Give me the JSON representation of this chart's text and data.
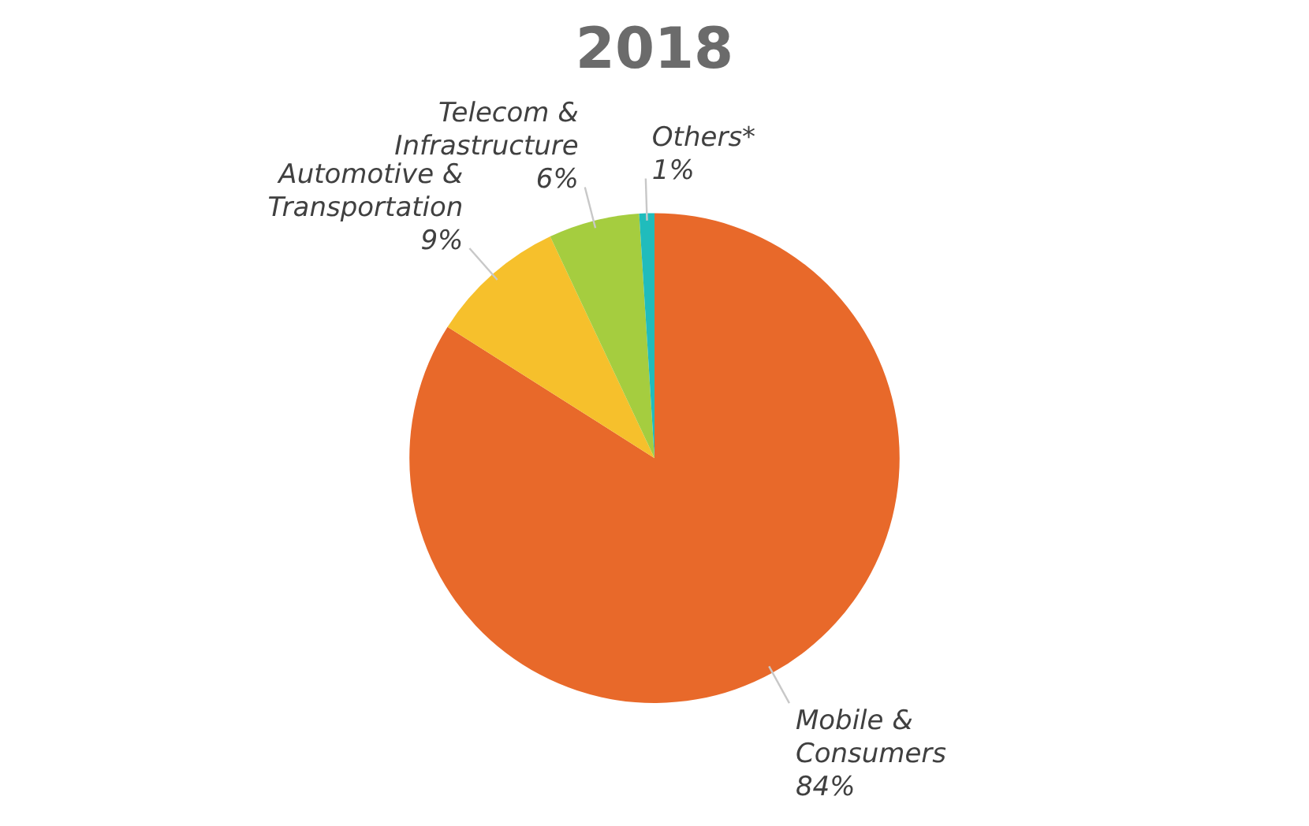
{
  "chart_data": {
    "type": "pie",
    "title": "2018",
    "categories": [
      "Mobile & Consumers",
      "Automotive & Transportation",
      "Telecom & Infrastructure",
      "Others*"
    ],
    "values": [
      84,
      9,
      6,
      1
    ],
    "value_labels": [
      "84%",
      "9%",
      "6%",
      "1%"
    ],
    "colors": [
      "#e8692a",
      "#f6c02c",
      "#a5cd3f",
      "#20bcbc"
    ],
    "legend": false
  }
}
